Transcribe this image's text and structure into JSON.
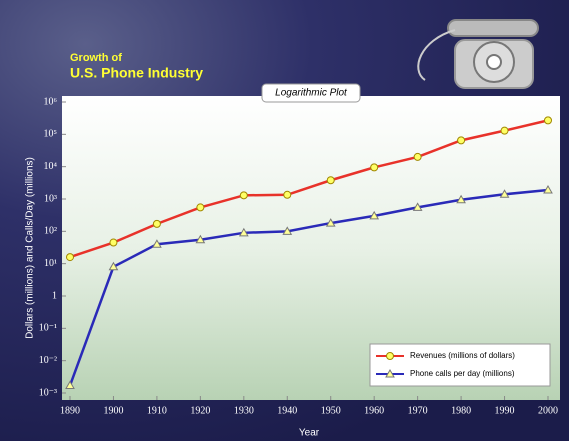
{
  "chart_data": {
    "type": "line",
    "title": "Growth of",
    "subtitle": "U.S. Phone Industry",
    "plot_label": "Logarithmic Plot",
    "x_label": "Year",
    "y_label": "Dollars (millions) and Calls/Day (millions)",
    "log_y": true,
    "x": [
      1890,
      1900,
      1910,
      1920,
      1930,
      1940,
      1950,
      1960,
      1970,
      1980,
      1990,
      2000
    ],
    "series": [
      {
        "name": "Revenues (millions of dollars)",
        "color": "#e8322a",
        "marker": "circle",
        "values": [
          16,
          45,
          170,
          550,
          1300,
          1350,
          3800,
          9500,
          20000,
          65000,
          130000,
          270000
        ]
      },
      {
        "name": "Phone calls per day (millions)",
        "color": "#2a2ab8",
        "marker": "triangle",
        "values": [
          0.0017,
          8,
          40,
          55,
          90,
          100,
          180,
          300,
          550,
          950,
          1400,
          1900
        ]
      }
    ],
    "xlim": [
      1890,
      2000
    ],
    "xticks": [
      1890,
      1900,
      1910,
      1920,
      1930,
      1940,
      1950,
      1960,
      1970,
      1980,
      1990,
      2000
    ],
    "ylim": [
      0.001,
      1000000
    ],
    "yticks": [
      {
        "value": 0.001,
        "label": "10⁻³"
      },
      {
        "value": 0.01,
        "label": "10⁻²"
      },
      {
        "value": 0.1,
        "label": "10⁻¹"
      },
      1,
      {
        "value": 10,
        "label": "10¹"
      },
      {
        "value": 100,
        "label": "10²"
      },
      {
        "value": 1000,
        "label": "10³"
      },
      {
        "value": 10000,
        "label": "10⁴"
      },
      {
        "value": 100000,
        "label": "10⁵"
      },
      {
        "value": 1000000,
        "label": "10⁶"
      }
    ],
    "legend": "lower right"
  }
}
